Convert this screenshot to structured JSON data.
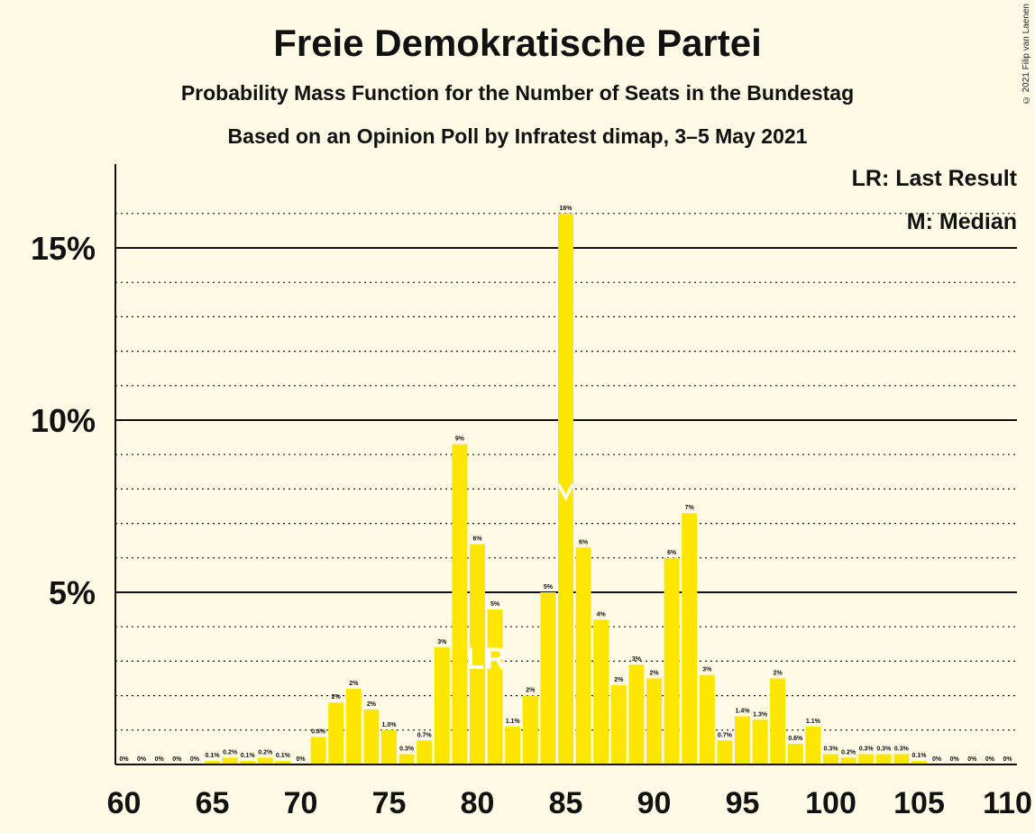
{
  "header": {
    "title": "Freie Demokratische Partei",
    "subtitle": "Probability Mass Function for the Number of Seats in the Bundestag",
    "subtitle2": "Based on an Opinion Poll by Infratest dimap, 3–5 May 2021",
    "copyright": "© 2021 Filip van Laenen"
  },
  "legend": {
    "lr": "LR: Last Result",
    "m": "M: Median"
  },
  "colors": {
    "bar": "#FFE600",
    "background": "#FFFAE6",
    "marker": "#FFFFFF"
  },
  "chart_data": {
    "type": "bar",
    "x": [
      60,
      61,
      62,
      63,
      64,
      65,
      66,
      67,
      68,
      69,
      70,
      71,
      72,
      73,
      74,
      75,
      76,
      77,
      78,
      79,
      80,
      81,
      82,
      83,
      84,
      85,
      86,
      87,
      88,
      89,
      90,
      91,
      92,
      93,
      94,
      95,
      96,
      97,
      98,
      99,
      100,
      101,
      102,
      103,
      104,
      105,
      106,
      107,
      108,
      109,
      110
    ],
    "values": [
      0,
      0,
      0,
      0,
      0,
      0.1,
      0.2,
      0.1,
      0.2,
      0.1,
      0,
      0.8,
      1.8,
      2.2,
      1.6,
      1.0,
      0.3,
      0.7,
      3.4,
      9.3,
      6.4,
      4.5,
      1.1,
      2.0,
      5.0,
      16.0,
      6.3,
      4.2,
      2.3,
      2.9,
      2.5,
      6.0,
      7.3,
      2.6,
      0.7,
      1.4,
      1.3,
      2.5,
      0.6,
      1.1,
      0.3,
      0.2,
      0.3,
      0.3,
      0.3,
      0.1,
      0,
      0,
      0,
      0,
      0
    ],
    "data_labels": [
      "0%",
      "0%",
      "0%",
      "0%",
      "0%",
      "0.1%",
      "0.2%",
      "0.1%",
      "0.2%",
      "0.1%",
      "0%",
      "0.8%",
      "2%",
      "2%",
      "2%",
      "1.0%",
      "0.3%",
      "0.7%",
      "3%",
      "9%",
      "6%",
      "5%",
      "1.1%",
      "2%",
      "5%",
      "16%",
      "6%",
      "4%",
      "2%",
      "3%",
      "2%",
      "6%",
      "7%",
      "3%",
      "0.7%",
      "1.4%",
      "1.3%",
      "2%",
      "0.6%",
      "1.1%",
      "0.3%",
      "0.2%",
      "0.3%",
      "0.3%",
      "0.3%",
      "0.1%",
      "0%",
      "0%",
      "0%",
      "0%",
      "0%"
    ],
    "xticks": [
      60,
      65,
      70,
      75,
      80,
      85,
      90,
      95,
      100,
      105,
      110
    ],
    "xtick_labels": [
      "60",
      "65",
      "70",
      "75",
      "80",
      "85",
      "90",
      "95",
      "100",
      "105",
      "110"
    ],
    "yticks": [
      5,
      10,
      15
    ],
    "ytick_labels": [
      "5%",
      "10%",
      "15%"
    ],
    "ylim": [
      0,
      16.5
    ],
    "xlim": [
      60,
      110
    ],
    "last_result": 80,
    "last_result_label": "LR",
    "median": 85,
    "median_label": "M",
    "grid": "dotted minor, solid major",
    "legend_position": "top-right"
  }
}
